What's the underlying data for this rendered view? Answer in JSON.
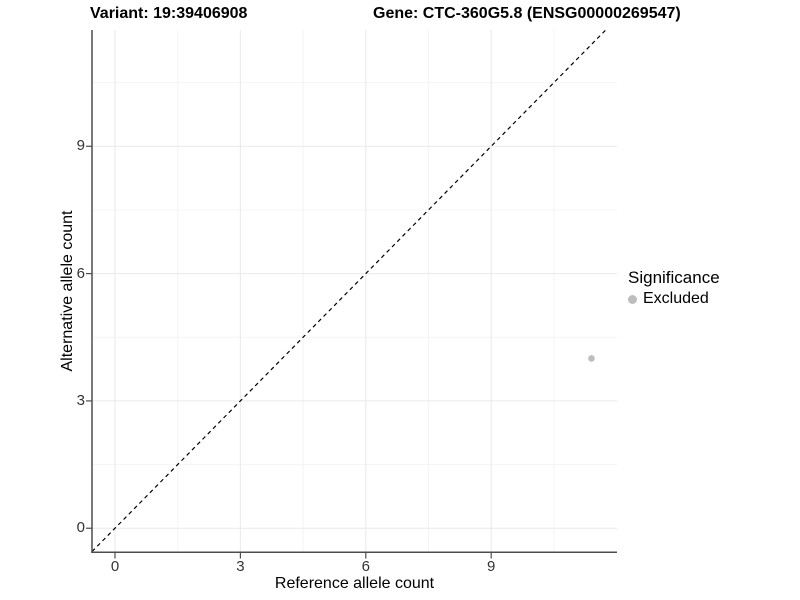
{
  "titles": {
    "variant": "Variant: 19:39406908",
    "gene": "Gene: CTC-360G5.8 (ENSG00000269547)"
  },
  "axes": {
    "x_title": "Reference allele count",
    "y_title": "Alternative allele count"
  },
  "legend": {
    "title": "Significance",
    "items": [
      {
        "label": "Excluded",
        "color": "#bdbdbd"
      }
    ]
  },
  "colors": {
    "background": "#ffffff",
    "axis_line": "#4d4d4d",
    "tick_mark": "#4d4d4d",
    "tick_label": "#333333",
    "grid_major": "#e9e9e9",
    "grid_minor": "#f4f4f4",
    "reference_line": "#000000",
    "point": "#bdbdbd"
  },
  "chart_data": {
    "type": "scatter",
    "title": "Variant: 19:39406908 | Gene: CTC-360G5.8 (ENSG00000269547)",
    "xlabel": "Reference allele count",
    "ylabel": "Alternative allele count",
    "xlim": [
      -0.55,
      12.01
    ],
    "ylim": [
      -0.56,
      11.74
    ],
    "x_ticks": [
      0,
      3,
      6,
      9
    ],
    "y_ticks": [
      0,
      3,
      6,
      9
    ],
    "x_minor_grid": [
      1.5,
      4.5,
      7.5,
      10.5
    ],
    "y_minor_grid": [
      1.5,
      4.5,
      7.5,
      10.5
    ],
    "grid": "on",
    "legend_position": "right",
    "series": [
      {
        "name": "Excluded",
        "color": "#bdbdbd",
        "point_radius": 3.3,
        "points": [
          [
            11.4,
            4.0
          ]
        ]
      }
    ],
    "reference_line": {
      "slope": 1,
      "intercept": 0,
      "style": "dashed",
      "color": "#000000"
    }
  }
}
